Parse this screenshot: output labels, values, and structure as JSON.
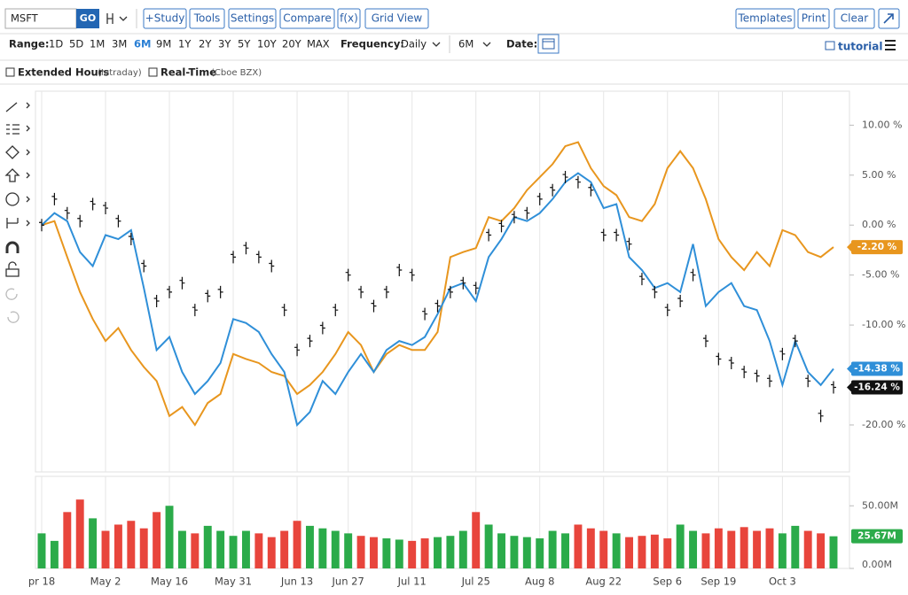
{
  "toolbar": {
    "symbol": "MSFT",
    "go": "GO",
    "buttons": [
      "+Study",
      "Tools",
      "Settings",
      "Compare",
      "f(x)",
      "Grid View"
    ],
    "right_buttons": [
      "Templates",
      "Print",
      "Clear"
    ]
  },
  "range_bar": {
    "range_label": "Range:",
    "ranges": [
      "1D",
      "5D",
      "1M",
      "3M",
      "6M",
      "9M",
      "1Y",
      "2Y",
      "3Y",
      "5Y",
      "10Y",
      "20Y",
      "MAX"
    ],
    "active_index": 4,
    "frequency_label": "Frequency:",
    "frequency": "Daily",
    "period": "6M",
    "date_label": "Date:",
    "tutorial": "tutorial"
  },
  "options": {
    "extended_hours": "Extended Hours",
    "extended_note": "(Intraday)",
    "real_time": "Real-Time",
    "real_time_note": "(Cboe BZX)"
  },
  "chart_data": [
    {
      "type": "line",
      "categories": [
        "pr 18",
        null,
        null,
        null,
        null,
        "May 2",
        null,
        null,
        null,
        null,
        "May 16",
        null,
        null,
        null,
        null,
        "May 31",
        null,
        null,
        null,
        null,
        "Jun 13",
        null,
        null,
        null,
        "Jun 27",
        null,
        null,
        null,
        null,
        "Jul 11",
        null,
        null,
        null,
        null,
        "Jul 25",
        null,
        null,
        null,
        null,
        "Aug 8",
        null,
        null,
        null,
        null,
        "Aug 22",
        null,
        null,
        null,
        null,
        "Sep 6",
        null,
        null,
        null,
        "Sep 19",
        null,
        null,
        null,
        null,
        "Oct 3",
        null,
        null,
        null,
        null
      ],
      "series": [
        {
          "style": "ohlc",
          "color": "#111111",
          "last_label": "-16.24 %",
          "values": [
            0,
            2.6,
            1.2,
            0.4,
            2.1,
            1.7,
            0.4,
            -1.4,
            -4.1,
            -7.6,
            -6.7,
            -5.8,
            -8.5,
            -7.1,
            -6.7,
            -3.2,
            -2.3,
            -3.2,
            -4.1,
            -8.5,
            -12.5,
            -11.6,
            -10.3,
            -8.5,
            -5,
            -6.7,
            -8.1,
            -6.7,
            -4.5,
            -5,
            -8.9,
            -8.1,
            -6.7,
            -5.8,
            -6.3,
            -1.0,
            -0.1,
            0.8,
            1.2,
            2.6,
            3.5,
            4.8,
            4.3,
            3.5,
            -1.0,
            -1.0,
            -1.9,
            -5.4,
            -6.7,
            -8.5,
            -7.6,
            -5,
            -11.6,
            -13.4,
            -13.8,
            -14.7,
            -15.1,
            -15.6,
            -12.9,
            -11.6,
            -15.6,
            -19.1,
            -16.24
          ]
        },
        {
          "style": "line",
          "color": "#e8961e",
          "last_label": "-2.20 %",
          "values": [
            0,
            0.4,
            -3.2,
            -6.7,
            -9.4,
            -11.6,
            -10.3,
            -12.5,
            -14.2,
            -15.6,
            -19.1,
            -18.2,
            -20,
            -17.8,
            -16.9,
            -12.9,
            -13.4,
            -13.8,
            -14.7,
            -15.1,
            -16.9,
            -16,
            -14.7,
            -12.9,
            -10.7,
            -12,
            -14.7,
            -12.9,
            -12,
            -12.5,
            -12.5,
            -10.7,
            -3.2,
            -2.7,
            -2.3,
            0.8,
            0.4,
            1.7,
            3.5,
            4.8,
            6.1,
            7.9,
            8.3,
            5.7,
            3.9,
            3.0,
            0.8,
            0.4,
            2.1,
            5.7,
            7.4,
            5.7,
            2.6,
            -1.4,
            -3.2,
            -4.5,
            -2.7,
            -4.1,
            -0.5,
            -1.0,
            -2.7,
            -3.2,
            -2.2
          ]
        },
        {
          "style": "line",
          "color": "#2f8fd8",
          "last_label": "-14.38 %",
          "values": [
            0,
            1.2,
            0.4,
            -2.7,
            -4.1,
            -1.0,
            -1.4,
            -0.5,
            -6.3,
            -12.5,
            -11.2,
            -14.7,
            -16.9,
            -15.6,
            -13.8,
            -9.4,
            -9.8,
            -10.7,
            -12.9,
            -14.7,
            -20,
            -18.7,
            -15.6,
            -16.9,
            -14.7,
            -12.9,
            -14.7,
            -12.5,
            -11.6,
            -12,
            -11.2,
            -8.9,
            -6.3,
            -5.8,
            -7.6,
            -3.2,
            -1.4,
            0.8,
            0.4,
            1.2,
            2.6,
            4.3,
            5.2,
            4.3,
            1.7,
            2.1,
            -3.2,
            -4.5,
            -6.3,
            -5.8,
            -6.7,
            -1.9,
            -8.1,
            -6.7,
            -5.8,
            -8.1,
            -8.5,
            -11.6,
            -16,
            -11.6,
            -14.7,
            -16,
            -14.38
          ]
        }
      ],
      "ylim": [
        -24.7,
        13.4
      ],
      "yticks": [
        {
          "value": 10,
          "label": "10.00 %"
        },
        {
          "value": 5,
          "label": "5.00 %"
        },
        {
          "value": 0,
          "label": "0.00 %"
        },
        {
          "value": -5,
          "label": "-5.00 %"
        },
        {
          "value": -10,
          "label": "-10.00 %"
        },
        {
          "value": -20,
          "label": "-20.00 %"
        }
      ],
      "grid": true
    },
    {
      "type": "bar",
      "last_label": "25.67M",
      "last_color": "#2bab4a",
      "values": [
        28,
        22,
        45,
        55,
        40,
        30,
        35,
        38,
        32,
        45,
        50,
        30,
        28,
        34,
        30,
        26,
        30,
        28,
        25,
        30,
        38,
        34,
        32,
        30,
        28,
        26,
        25,
        24,
        23,
        22,
        24,
        25,
        26,
        30,
        45,
        35,
        28,
        26,
        25,
        24,
        30,
        28,
        35,
        32,
        30,
        28,
        25,
        26,
        27,
        24,
        35,
        30,
        28,
        32,
        30,
        33,
        30,
        32,
        28,
        34,
        30,
        28,
        25.67
      ],
      "colors": [
        "#2bab4a",
        "#2bab4a",
        "#e8453c",
        "#e8453c",
        "#2bab4a",
        "#e8453c",
        "#e8453c",
        "#e8453c",
        "#e8453c",
        "#e8453c",
        "#2bab4a",
        "#2bab4a",
        "#e8453c",
        "#2bab4a",
        "#2bab4a",
        "#2bab4a",
        "#2bab4a",
        "#e8453c",
        "#e8453c",
        "#e8453c",
        "#e8453c",
        "#2bab4a",
        "#2bab4a",
        "#2bab4a",
        "#2bab4a",
        "#e8453c",
        "#e8453c",
        "#2bab4a",
        "#2bab4a",
        "#e8453c",
        "#e8453c",
        "#2bab4a",
        "#2bab4a",
        "#2bab4a",
        "#e8453c",
        "#2bab4a",
        "#2bab4a",
        "#2bab4a",
        "#2bab4a",
        "#2bab4a",
        "#2bab4a",
        "#2bab4a",
        "#e8453c",
        "#e8453c",
        "#e8453c",
        "#2bab4a",
        "#e8453c",
        "#e8453c",
        "#e8453c",
        "#e8453c",
        "#2bab4a",
        "#2bab4a",
        "#e8453c",
        "#e8453c",
        "#e8453c",
        "#e8453c",
        "#e8453c",
        "#e8453c",
        "#2bab4a",
        "#2bab4a",
        "#e8453c",
        "#e8453c",
        "#2bab4a"
      ],
      "ylim": [
        0,
        73.5
      ],
      "yticks": [
        {
          "value": 50,
          "label": "50.00M"
        },
        {
          "value": 0,
          "label": "0.00M"
        }
      ]
    }
  ]
}
